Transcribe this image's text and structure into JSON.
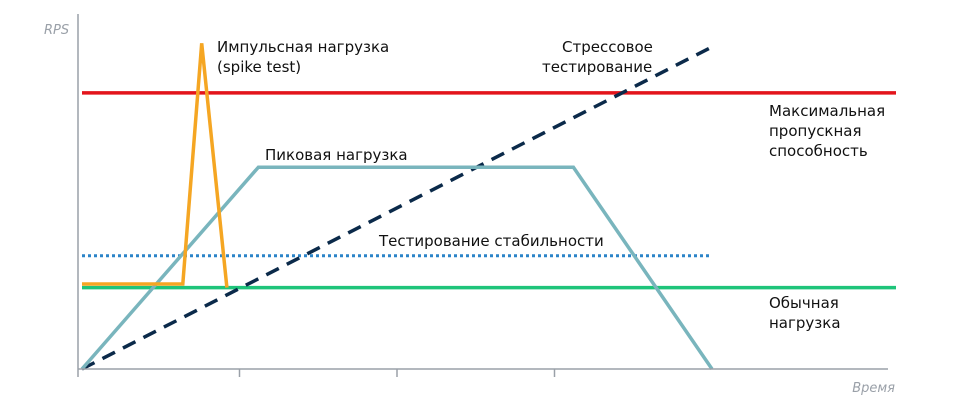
{
  "chart_data": {
    "type": "line",
    "xlabel": "Время",
    "ylabel": "RPS",
    "xlim": [
      0,
      10
    ],
    "ylim": [
      0,
      10
    ],
    "x_ticks": [
      0,
      2.5,
      5,
      7.5
    ],
    "grid": false,
    "legend": "none",
    "colors": {
      "axis": "#9aa0a8",
      "spike": "#f5a623",
      "max_capacity": "#e3141b",
      "peak": "#79b5bd",
      "stress": "#0b2a4a",
      "stability": "#2b84c8",
      "normal": "#1ec47a"
    },
    "series": [
      {
        "key": "max_capacity",
        "name": "Максимальная пропускная способность",
        "style": "solid",
        "x": [
          0,
          13
        ],
        "y": [
          7.8,
          7.8
        ]
      },
      {
        "key": "normal",
        "name": "Обычная нагрузка",
        "style": "solid",
        "x": [
          0,
          13
        ],
        "y": [
          2.3,
          2.3
        ]
      },
      {
        "key": "stability",
        "name": "Тестирование стабильности",
        "style": "dotted",
        "x": [
          0,
          10
        ],
        "y": [
          3.2,
          3.2
        ]
      },
      {
        "key": "stress",
        "name": "Стрессовое тестирование",
        "style": "dashed",
        "x": [
          0,
          10
        ],
        "y": [
          0,
          9.1
        ]
      },
      {
        "key": "peak",
        "name": "Пиковая нагрузка",
        "style": "solid",
        "x": [
          0,
          2.8,
          7.8,
          10
        ],
        "y": [
          0,
          5.7,
          5.7,
          0
        ]
      },
      {
        "key": "spike",
        "name": "Импульсная нагрузка (spike test)",
        "style": "solid",
        "x": [
          0,
          1.6,
          1.9,
          2.3
        ],
        "y": [
          2.4,
          2.4,
          9.2,
          2.3
        ]
      }
    ],
    "annotations": [
      {
        "key": "spike",
        "lines": [
          "Импульсная нагрузка",
          "(spike test)"
        ]
      },
      {
        "key": "stress",
        "lines": [
          "Стрессовое",
          "тестирование"
        ]
      },
      {
        "key": "max_capacity",
        "lines": [
          "Максимальная",
          "пропускная",
          "способность"
        ]
      },
      {
        "key": "peak",
        "lines": [
          "Пиковая нагрузка"
        ]
      },
      {
        "key": "stability",
        "lines": [
          "Тестирование стабильности"
        ]
      },
      {
        "key": "normal",
        "lines": [
          "Обычная",
          "нагрузка"
        ]
      }
    ]
  }
}
